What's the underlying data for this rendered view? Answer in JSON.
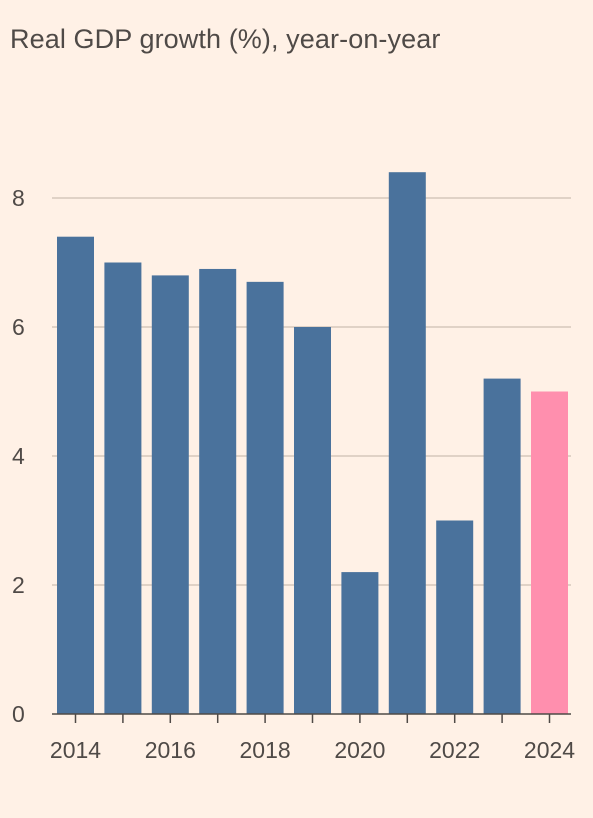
{
  "chart_data": {
    "type": "bar",
    "title": "Real GDP growth (%), year-on-year",
    "xlabel": "",
    "ylabel": "",
    "categories": [
      "2014",
      "2015",
      "2016",
      "2017",
      "2018",
      "2019",
      "2020",
      "2021",
      "2022",
      "2023",
      "2024"
    ],
    "values": [
      7.4,
      7.0,
      6.8,
      6.9,
      6.7,
      6.0,
      2.2,
      8.4,
      3.0,
      5.2,
      5.0
    ],
    "highlight_category": "2024",
    "x_tick_labels": [
      "2014",
      "2016",
      "2018",
      "2020",
      "2022",
      "2024"
    ],
    "y_ticks": [
      0,
      2,
      4,
      6,
      8
    ],
    "ylim": [
      0,
      8
    ],
    "grid": true,
    "legend": "none",
    "colors": {
      "bar": "#4a729c",
      "highlight": "#ff8fae",
      "grid": "#d6c7bc",
      "axis": "#4f4a47",
      "text": "#4f4a47",
      "background": "#fff1e6"
    }
  }
}
